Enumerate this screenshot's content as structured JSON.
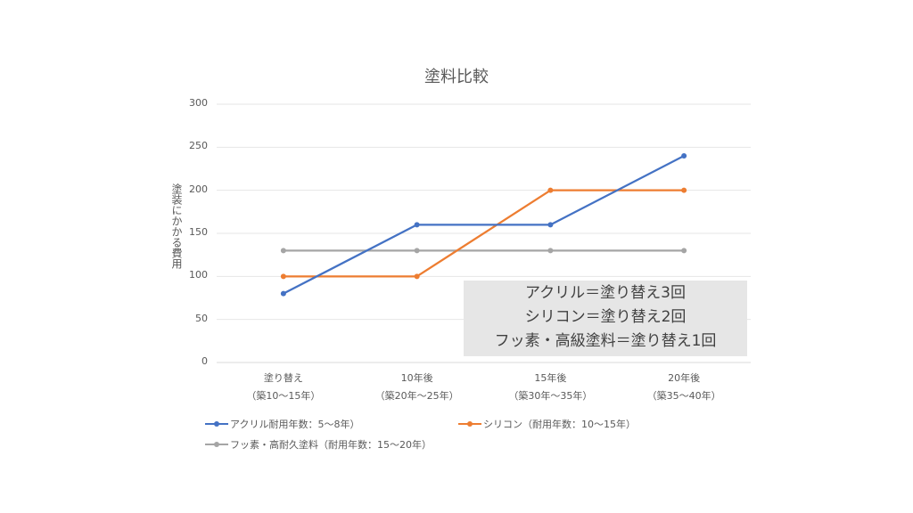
{
  "chart_data": {
    "type": "line",
    "title": "塗料比較",
    "xlabel": "",
    "ylabel": "塗装にかかる費用",
    "ylim": [
      0,
      300
    ],
    "yticks": [
      "300",
      "250",
      "200",
      "150",
      "100",
      "50",
      "0"
    ],
    "grid": true,
    "legend_position": "bottom",
    "categories": [
      {
        "line1": "塗り替え",
        "line2": "（築10〜15年）"
      },
      {
        "line1": "10年後",
        "line2": "（築20年〜25年）"
      },
      {
        "line1": "15年後",
        "line2": "（築30年〜35年）"
      },
      {
        "line1": "20年後",
        "line2": "（築35〜40年）"
      }
    ],
    "series": [
      {
        "name": "アクリル耐用年数：5〜8年）",
        "color": "#4472c4",
        "values": [
          80,
          160,
          160,
          240
        ]
      },
      {
        "name": "シリコン（耐用年数：10〜15年）",
        "color": "#ed7d31",
        "values": [
          100,
          100,
          200,
          200
        ]
      },
      {
        "name": "フッ素・高耐久塗料（耐用年数：15〜20年）",
        "color": "#a5a5a5",
        "values": [
          130,
          130,
          130,
          130
        ]
      }
    ],
    "annotation": [
      "アクリル＝塗り替え3回",
      "シリコン＝塗り替え2回",
      "フッ素・高級塗料＝塗り替え1回"
    ]
  }
}
